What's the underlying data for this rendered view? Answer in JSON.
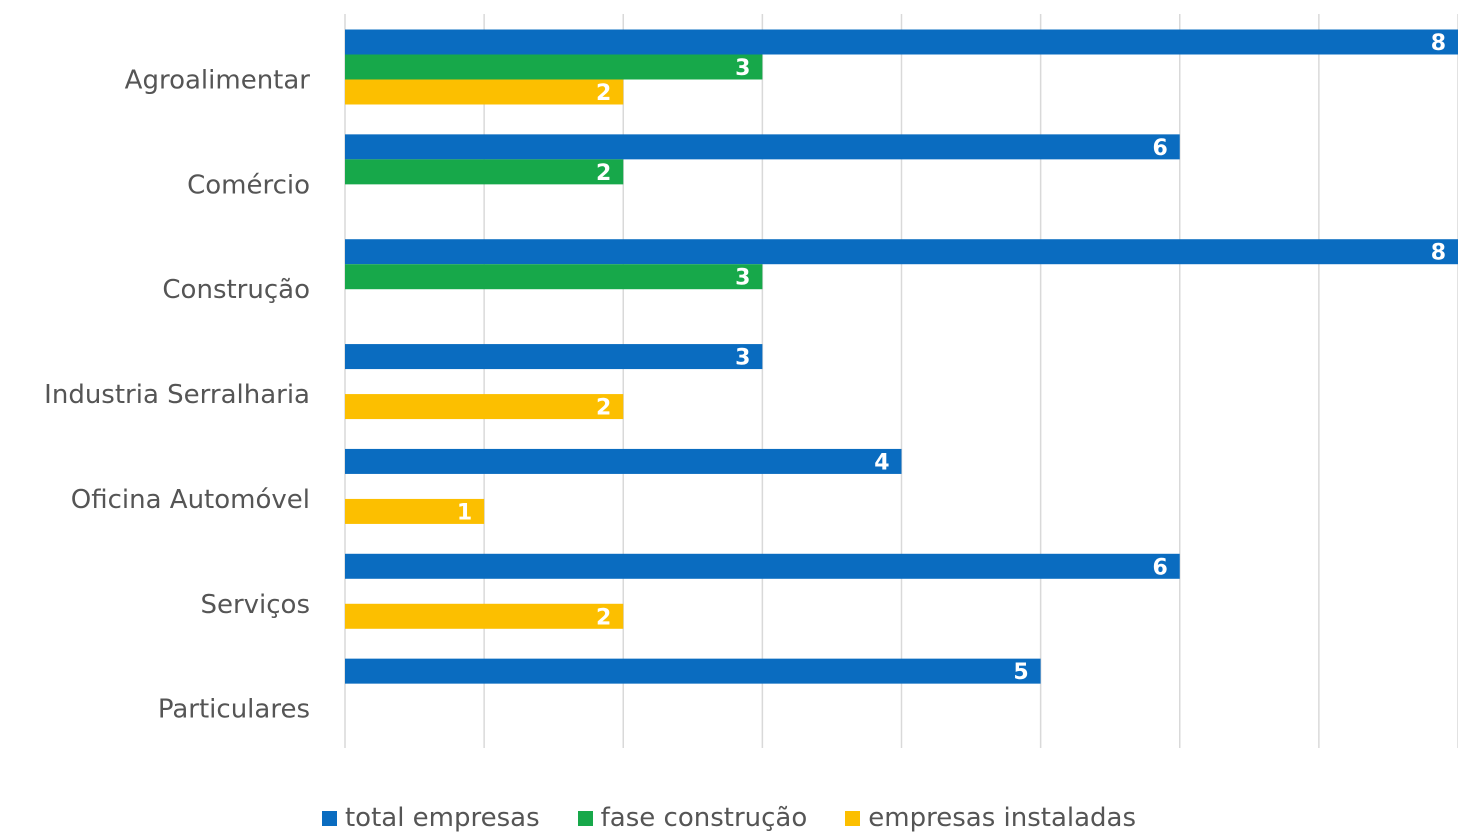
{
  "chart_data": {
    "type": "bar",
    "orientation": "horizontal",
    "title": "",
    "xlabel": "",
    "ylabel": "",
    "categories": [
      "Agroalimentar",
      "Comércio",
      "Construção",
      "Industria Serralharia",
      "Oficina Automóvel",
      "Serviços",
      "Particulares"
    ],
    "series": [
      {
        "name": "total empresas",
        "color": "#0a6cc0",
        "values": [
          8,
          6,
          8,
          3,
          4,
          6,
          5
        ]
      },
      {
        "name": "fase construção",
        "color": "#17a84a",
        "values": [
          3,
          2,
          3,
          null,
          null,
          null,
          null
        ]
      },
      {
        "name": "empresas instaladas",
        "color": "#fcbf00",
        "values": [
          2,
          null,
          null,
          2,
          1,
          2,
          null
        ]
      }
    ],
    "xlim": [
      0,
      8
    ],
    "grid": true,
    "data_labels": true,
    "legend_position": "bottom"
  }
}
